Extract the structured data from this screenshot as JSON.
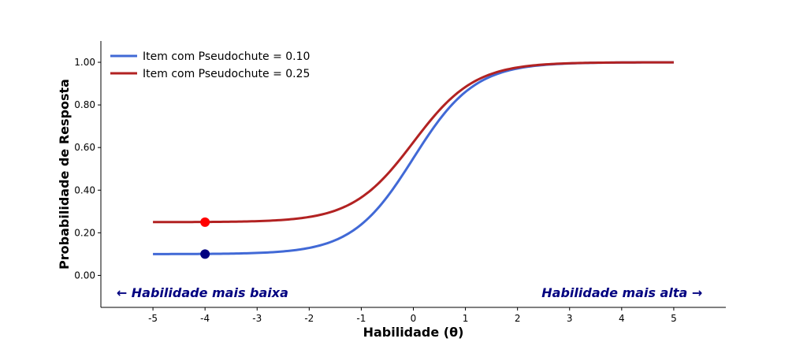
{
  "chart_data": {
    "type": "line",
    "title": "",
    "xlabel": "Habilidade (θ)",
    "ylabel": "Probabilidade de Resposta",
    "xlim": [
      -6,
      6
    ],
    "ylim": [
      -0.15,
      1.1
    ],
    "x_ticks": [
      "-5",
      "-4",
      "-3",
      "-2",
      "-1",
      "0",
      "1",
      "2",
      "3",
      "4",
      "5"
    ],
    "y_ticks": [
      "0.00",
      "0.20",
      "0.40",
      "0.60",
      "0.80",
      "1.00"
    ],
    "grid": false,
    "legend_position": "top-left",
    "model": "3PL logistic, a = 1.7, b = 0",
    "series": [
      {
        "name": "Item com Pseudochute = 0.10",
        "color": "#4169d6",
        "guessing": 0.1,
        "marker": {
          "x": -4,
          "y": 0.1,
          "color": "#000080"
        },
        "x": [
          -5,
          -4,
          -3,
          -2,
          -1.5,
          -1,
          -0.5,
          0,
          0.5,
          1,
          1.5,
          2,
          3,
          4,
          5
        ],
        "y": [
          0.1,
          0.1,
          0.105,
          0.13,
          0.17,
          0.25,
          0.37,
          0.55,
          0.73,
          0.85,
          0.93,
          0.97,
          0.995,
          0.999,
          1.0
        ]
      },
      {
        "name": "Item com Pseudochute = 0.25",
        "color": "#b22222",
        "guessing": 0.25,
        "marker": {
          "x": -4,
          "y": 0.25,
          "color": "#ff0000"
        },
        "x": [
          -5,
          -4,
          -3,
          -2,
          -1.5,
          -1,
          -0.5,
          0,
          0.5,
          1,
          1.5,
          2,
          3,
          4,
          5
        ],
        "y": [
          0.25,
          0.25,
          0.255,
          0.275,
          0.31,
          0.37,
          0.48,
          0.625,
          0.77,
          0.875,
          0.935,
          0.975,
          0.995,
          0.999,
          1.0
        ]
      }
    ],
    "annotations": [
      {
        "text": "← Habilidade mais baixa",
        "x": -5.7,
        "y": -0.08,
        "color": "#000080",
        "anchor": "start"
      },
      {
        "text": "Habilidade mais alta →",
        "x": 5.55,
        "y": -0.08,
        "color": "#000080",
        "anchor": "end"
      }
    ]
  }
}
